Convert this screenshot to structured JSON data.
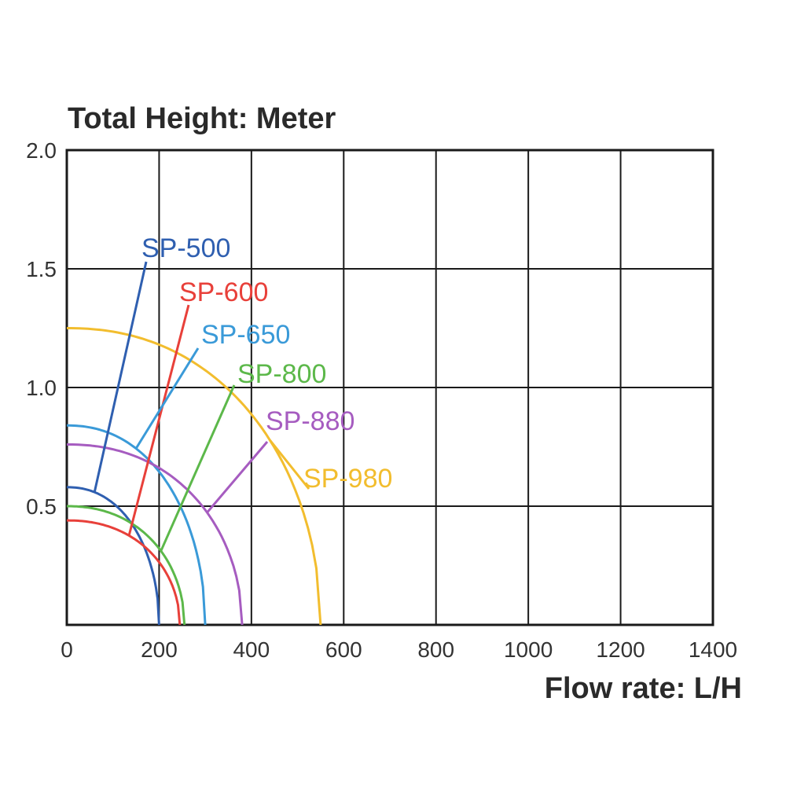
{
  "chart_data": {
    "type": "line",
    "title": "",
    "ylabel": "Total Height:  Meter",
    "xlabel": "Flow rate:  L/H",
    "xlim": [
      0,
      1400
    ],
    "ylim": [
      0,
      2.0
    ],
    "x_ticks": [
      "0",
      "200",
      "400",
      "600",
      "800",
      "1000",
      "1200",
      "1400"
    ],
    "y_ticks": [
      "0.5",
      "1.0",
      "1.5",
      "2.0"
    ],
    "grid": true,
    "legend": "labels-with-leader-lines",
    "colors": {
      "grid": "#1a1a1a",
      "SP-500": "#2f5fb0",
      "SP-600": "#e8403a",
      "SP-650": "#3a9ad8",
      "SP-800": "#5cb84a",
      "SP-880": "#a65cc0",
      "SP-980": "#f2bd2e"
    },
    "series": [
      {
        "name": "SP-500",
        "max_height": 0.58,
        "max_flow": 200
      },
      {
        "name": "SP-600",
        "max_height": 0.44,
        "max_flow": 245
      },
      {
        "name": "SP-650",
        "max_height": 0.84,
        "max_flow": 300
      },
      {
        "name": "SP-800",
        "max_height": 0.5,
        "max_flow": 255
      },
      {
        "name": "SP-880",
        "max_height": 0.76,
        "max_flow": 380
      },
      {
        "name": "SP-980",
        "max_height": 1.25,
        "max_flow": 550
      }
    ]
  }
}
